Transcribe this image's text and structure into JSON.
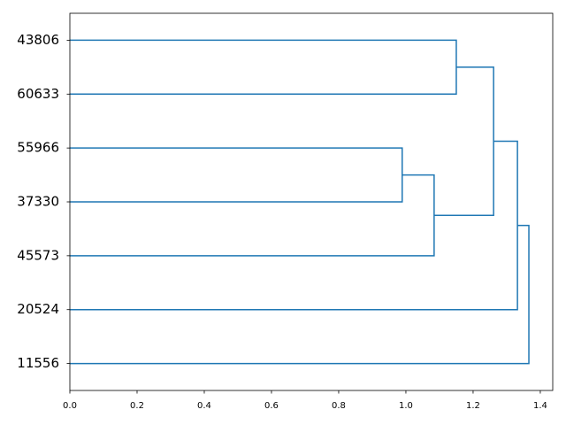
{
  "chart_data": {
    "type": "dendrogram",
    "color": "#1f77b4",
    "xlim": [
      0,
      1.437
    ],
    "xticks": [
      {
        "value": 0,
        "label": "0.0"
      },
      {
        "value": 0.2,
        "label": "0.2"
      },
      {
        "value": 0.4,
        "label": "0.4"
      },
      {
        "value": 0.6,
        "label": "0.6"
      },
      {
        "value": 0.8,
        "label": "0.8"
      },
      {
        "value": 1,
        "label": "1.0"
      },
      {
        "value": 1.2,
        "label": "1.2"
      },
      {
        "value": 1.4,
        "label": "1.4"
      }
    ],
    "tree": {
      "height": 1.366,
      "children": [
        {
          "height": 1.332,
          "children": [
            {
              "height": 1.261,
              "children": [
                {
                  "height": 1.15,
                  "children": [
                    "43806",
                    "60633"
                  ]
                },
                {
                  "height": 1.084,
                  "children": [
                    {
                      "height": 0.989,
                      "children": [
                        "55966",
                        "37330"
                      ]
                    },
                    "45573"
                  ]
                }
              ]
            },
            "20524"
          ]
        },
        "11556"
      ]
    }
  }
}
